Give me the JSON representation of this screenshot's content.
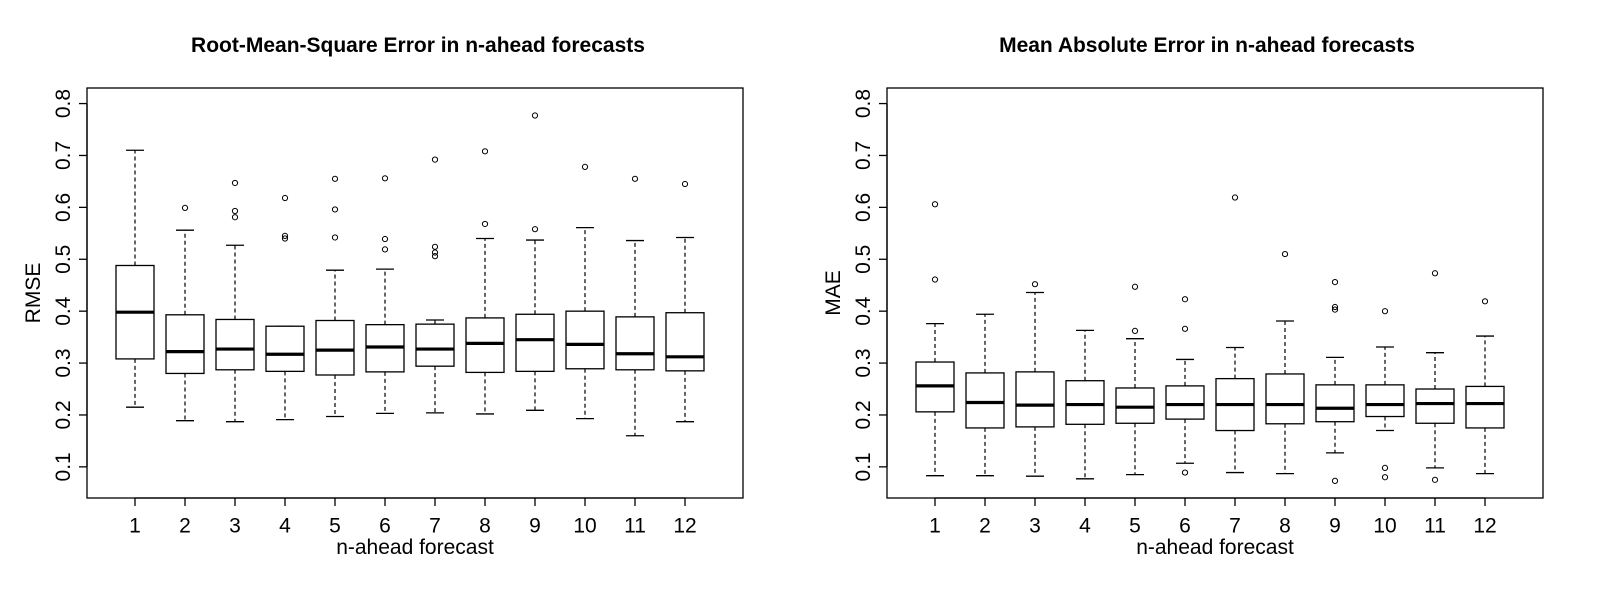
{
  "chart_data": [
    {
      "type": "box",
      "title": "Root-Mean-Square Error in n-ahead forecasts",
      "xlabel": "n-ahead forecast",
      "ylabel": "RMSE",
      "ylim": [
        0.04,
        0.83
      ],
      "yticks": [
        0.1,
        0.2,
        0.3,
        0.4,
        0.5,
        0.6,
        0.7,
        0.8
      ],
      "ytick_labels": [
        "0.1",
        "0.2",
        "0.3",
        "0.4",
        "0.5",
        "0.6",
        "0.7",
        "0.8"
      ],
      "categories": [
        "1",
        "2",
        "3",
        "4",
        "5",
        "6",
        "7",
        "8",
        "9",
        "10",
        "11",
        "12"
      ],
      "boxes": [
        {
          "low": 0.215,
          "q1": 0.308,
          "median": 0.398,
          "q3": 0.488,
          "high": 0.71,
          "outliers": []
        },
        {
          "low": 0.189,
          "q1": 0.28,
          "median": 0.322,
          "q3": 0.393,
          "high": 0.556,
          "outliers": [
            0.599
          ]
        },
        {
          "low": 0.187,
          "q1": 0.287,
          "median": 0.327,
          "q3": 0.384,
          "high": 0.527,
          "outliers": [
            0.581,
            0.593,
            0.647
          ]
        },
        {
          "low": 0.191,
          "q1": 0.284,
          "median": 0.317,
          "q3": 0.371,
          "high": 0.371,
          "outliers": [
            0.54,
            0.545,
            0.618
          ]
        },
        {
          "low": 0.197,
          "q1": 0.277,
          "median": 0.325,
          "q3": 0.382,
          "high": 0.479,
          "outliers": [
            0.542,
            0.596,
            0.655
          ]
        },
        {
          "low": 0.203,
          "q1": 0.283,
          "median": 0.331,
          "q3": 0.374,
          "high": 0.481,
          "outliers": [
            0.519,
            0.539,
            0.656
          ]
        },
        {
          "low": 0.204,
          "q1": 0.294,
          "median": 0.327,
          "q3": 0.375,
          "high": 0.383,
          "outliers": [
            0.506,
            0.513,
            0.524,
            0.692
          ]
        },
        {
          "low": 0.202,
          "q1": 0.282,
          "median": 0.338,
          "q3": 0.387,
          "high": 0.54,
          "outliers": [
            0.568,
            0.708
          ]
        },
        {
          "low": 0.209,
          "q1": 0.284,
          "median": 0.345,
          "q3": 0.394,
          "high": 0.537,
          "outliers": [
            0.558,
            0.777
          ]
        },
        {
          "low": 0.193,
          "q1": 0.289,
          "median": 0.336,
          "q3": 0.4,
          "high": 0.561,
          "outliers": [
            0.678
          ]
        },
        {
          "low": 0.16,
          "q1": 0.287,
          "median": 0.318,
          "q3": 0.389,
          "high": 0.536,
          "outliers": [
            0.655
          ]
        },
        {
          "low": 0.187,
          "q1": 0.285,
          "median": 0.312,
          "q3": 0.397,
          "high": 0.542,
          "outliers": [
            0.645
          ]
        }
      ]
    },
    {
      "type": "box",
      "title": "Mean Absolute Error in n-ahead forecasts",
      "xlabel": "n-ahead forecast",
      "ylabel": "MAE",
      "ylim": [
        0.04,
        0.83
      ],
      "yticks": [
        0.1,
        0.2,
        0.3,
        0.4,
        0.5,
        0.6,
        0.7,
        0.8
      ],
      "ytick_labels": [
        "0.1",
        "0.2",
        "0.3",
        "0.4",
        "0.5",
        "0.6",
        "0.7",
        "0.8"
      ],
      "categories": [
        "1",
        "2",
        "3",
        "4",
        "5",
        "6",
        "7",
        "8",
        "9",
        "10",
        "11",
        "12"
      ],
      "boxes": [
        {
          "low": 0.083,
          "q1": 0.206,
          "median": 0.256,
          "q3": 0.302,
          "high": 0.376,
          "outliers": [
            0.461,
            0.606
          ]
        },
        {
          "low": 0.083,
          "q1": 0.175,
          "median": 0.224,
          "q3": 0.281,
          "high": 0.394,
          "outliers": []
        },
        {
          "low": 0.082,
          "q1": 0.177,
          "median": 0.219,
          "q3": 0.283,
          "high": 0.436,
          "outliers": [
            0.452
          ]
        },
        {
          "low": 0.077,
          "q1": 0.182,
          "median": 0.22,
          "q3": 0.266,
          "high": 0.363,
          "outliers": []
        },
        {
          "low": 0.085,
          "q1": 0.184,
          "median": 0.215,
          "q3": 0.252,
          "high": 0.347,
          "outliers": [
            0.362,
            0.447
          ]
        },
        {
          "low": 0.107,
          "q1": 0.192,
          "median": 0.22,
          "q3": 0.256,
          "high": 0.307,
          "outliers": [
            0.089,
            0.366,
            0.423
          ]
        },
        {
          "low": 0.089,
          "q1": 0.17,
          "median": 0.22,
          "q3": 0.27,
          "high": 0.33,
          "outliers": [
            0.619
          ]
        },
        {
          "low": 0.087,
          "q1": 0.183,
          "median": 0.22,
          "q3": 0.279,
          "high": 0.381,
          "outliers": [
            0.51
          ]
        },
        {
          "low": 0.127,
          "q1": 0.187,
          "median": 0.213,
          "q3": 0.258,
          "high": 0.311,
          "outliers": [
            0.073,
            0.403,
            0.408,
            0.456
          ]
        },
        {
          "low": 0.17,
          "q1": 0.197,
          "median": 0.22,
          "q3": 0.258,
          "high": 0.331,
          "outliers": [
            0.08,
            0.098,
            0.4
          ]
        },
        {
          "low": 0.098,
          "q1": 0.184,
          "median": 0.222,
          "q3": 0.25,
          "high": 0.32,
          "outliers": [
            0.075,
            0.473
          ]
        },
        {
          "low": 0.087,
          "q1": 0.175,
          "median": 0.222,
          "q3": 0.255,
          "high": 0.352,
          "outliers": [
            0.419
          ]
        }
      ]
    }
  ]
}
